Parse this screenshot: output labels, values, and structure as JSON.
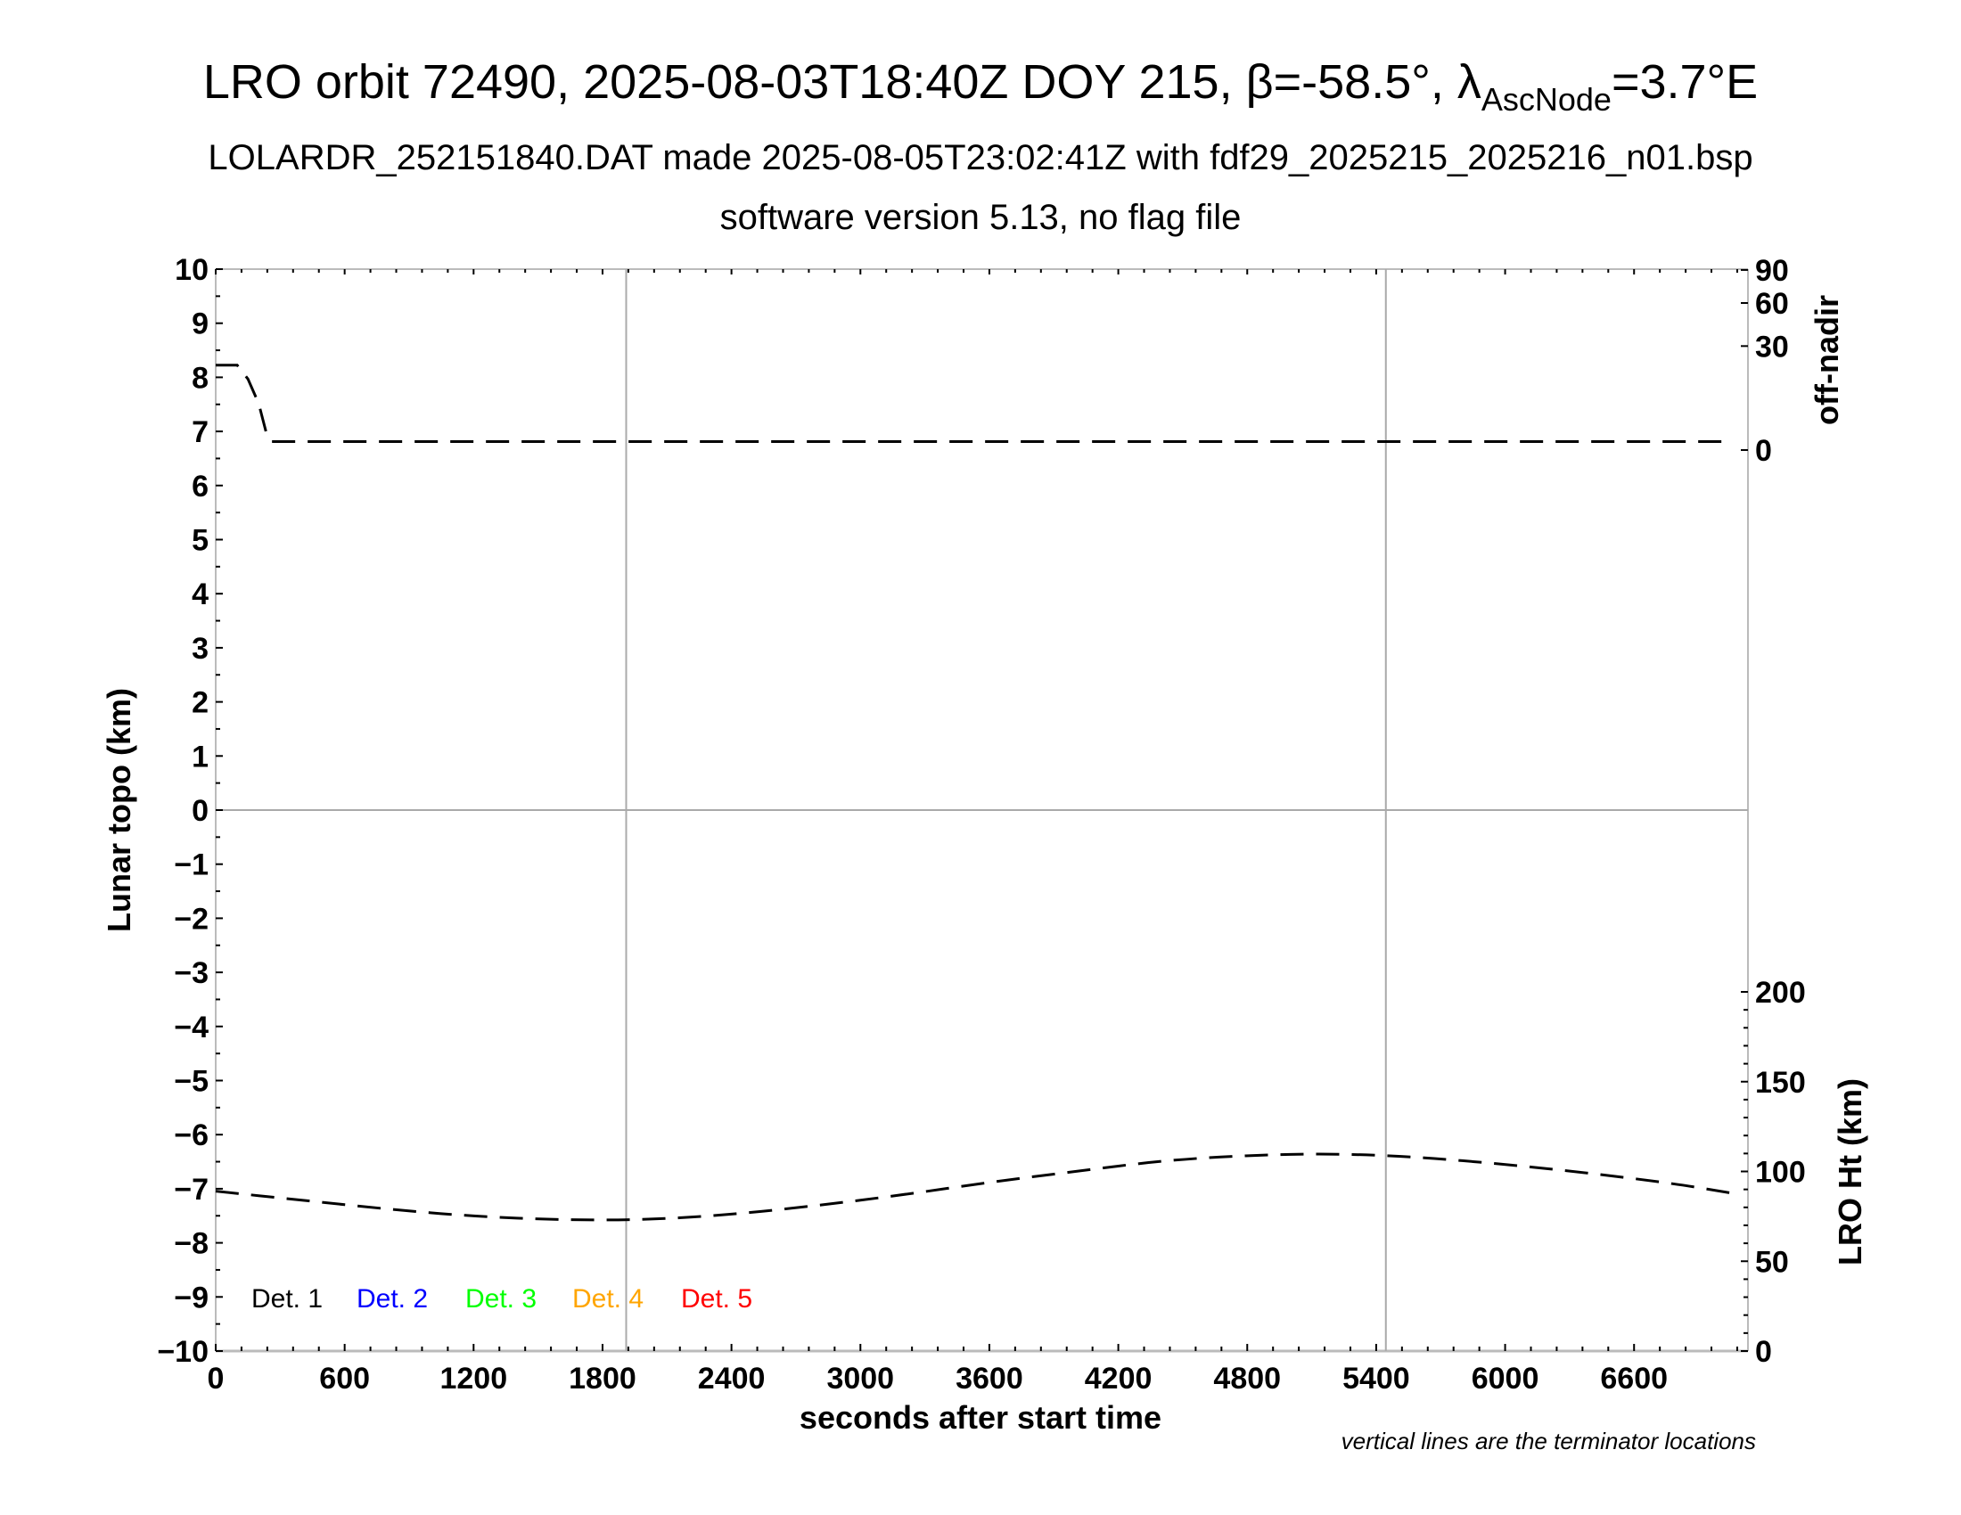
{
  "chart_data": {
    "type": "line",
    "title": "LRO orbit 72490, 2025-08-03T18:40Z DOY 215, β=-58.5°, λ",
    "title_sub": "AscNode",
    "title_tail": "=3.7°E",
    "subtitle": "LOLARDR_252151840.DAT made 2025-08-05T23:02:41Z with fdf29_2025215_2025216_n01.bsp",
    "subtitle2": "software version 5.13, no flag file",
    "xlabel": "seconds after start time",
    "ylabel": "Lunar topo (km)",
    "y2label_top": "off-nadir",
    "y2label_bottom": "LRO Ht (km)",
    "note": "vertical lines are the terminator locations",
    "xlim": [
      0,
      7130
    ],
    "ylim": [
      -10,
      10
    ],
    "xticks": [
      "0",
      "600",
      "1200",
      "1800",
      "2400",
      "3000",
      "3600",
      "4200",
      "4800",
      "5400",
      "6000",
      "6600"
    ],
    "yticks": [
      "10",
      "9",
      "8",
      "7",
      "6",
      "5",
      "4",
      "3",
      "2",
      "1",
      "0",
      "−1",
      "−2",
      "−3",
      "−4",
      "−5",
      "−6",
      "−7",
      "−8",
      "−9",
      "−10"
    ],
    "offnadir_ticks": [
      "0",
      "30",
      "60",
      "90"
    ],
    "offnadir_scale": "sqrt",
    "ht_ticks": [
      "0",
      "50",
      "100",
      "150",
      "200"
    ],
    "terminators": [
      1910,
      5445
    ],
    "grid": "zero line and terminator lines",
    "legend": {
      "placement": "bottom-left",
      "entries": [
        {
          "label": "Det. 1",
          "color": "#000000"
        },
        {
          "label": "Det. 2",
          "color": "#0000ff"
        },
        {
          "label": "Det. 3",
          "color": "#00ff00"
        },
        {
          "label": "Det. 4",
          "color": "#ffa500"
        },
        {
          "label": "Det. 5",
          "color": "#ff0000"
        }
      ]
    },
    "series": [
      {
        "axis": "off-nadir (deg)",
        "style": "dashed",
        "color": "#000000",
        "x": [
          0,
          100,
          150,
          200,
          240,
          260,
          1000,
          3000,
          5000,
          7050
        ],
        "y": [
          20,
          20,
          14,
          6,
          0.5,
          0.2,
          0.2,
          0.2,
          0.2,
          0.2
        ]
      },
      {
        "axis": "LRO Ht (km)",
        "style": "dashed",
        "color": "#000000",
        "x": [
          0,
          400,
          800,
          1200,
          1600,
          2000,
          2400,
          2800,
          3200,
          3600,
          4000,
          4400,
          4800,
          5200,
          5600,
          6000,
          6400,
          6800,
          7050
        ],
        "y": [
          89,
          84,
          79,
          75,
          73,
          73,
          76,
          81,
          87,
          94,
          100,
          106,
          109,
          110,
          108,
          104,
          99,
          93,
          88
        ]
      }
    ]
  }
}
